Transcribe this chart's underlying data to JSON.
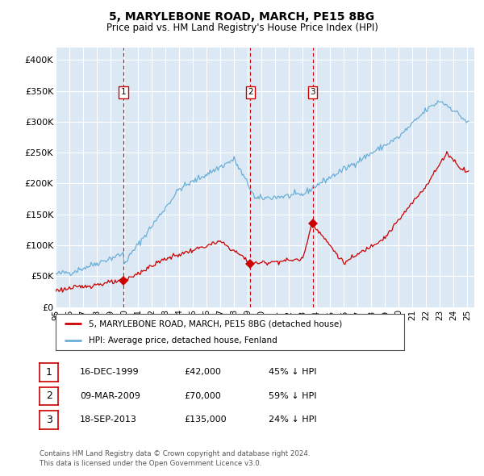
{
  "title": "5, MARYLEBONE ROAD, MARCH, PE15 8BG",
  "subtitle": "Price paid vs. HM Land Registry's House Price Index (HPI)",
  "bg_color": "#dce9f5",
  "ylabel_ticks": [
    "£0",
    "£50K",
    "£100K",
    "£150K",
    "£200K",
    "£250K",
    "£300K",
    "£350K",
    "£400K"
  ],
  "ytick_values": [
    0,
    50000,
    100000,
    150000,
    200000,
    250000,
    300000,
    350000,
    400000
  ],
  "ylim": [
    0,
    420000
  ],
  "xlim_start": 1995.0,
  "xlim_end": 2025.5,
  "xtick_years": [
    1995,
    1996,
    1997,
    1998,
    1999,
    2000,
    2001,
    2002,
    2003,
    2004,
    2005,
    2006,
    2007,
    2008,
    2009,
    2010,
    2011,
    2012,
    2013,
    2014,
    2015,
    2016,
    2017,
    2018,
    2019,
    2020,
    2021,
    2022,
    2023,
    2024,
    2025
  ],
  "xtick_labels": [
    "95",
    "96",
    "97",
    "98",
    "99",
    "00",
    "01",
    "02",
    "03",
    "04",
    "05",
    "06",
    "07",
    "08",
    "09",
    "10",
    "11",
    "12",
    "13",
    "14",
    "15",
    "16",
    "17",
    "18",
    "19",
    "20",
    "21",
    "22",
    "23",
    "24",
    "25"
  ],
  "hpi_color": "#6baed6",
  "price_color": "#cc0000",
  "vline_color": "#cc0000",
  "transaction_markers": [
    {
      "year": 1999.96,
      "price": 42000,
      "label": "1"
    },
    {
      "year": 2009.19,
      "price": 70000,
      "label": "2"
    },
    {
      "year": 2013.72,
      "price": 135000,
      "label": "3"
    }
  ],
  "table_rows": [
    {
      "num": "1",
      "date": "16-DEC-1999",
      "price": "£42,000",
      "pct": "45% ↓ HPI"
    },
    {
      "num": "2",
      "date": "09-MAR-2009",
      "price": "£70,000",
      "pct": "59% ↓ HPI"
    },
    {
      "num": "3",
      "date": "18-SEP-2013",
      "price": "£135,000",
      "pct": "24% ↓ HPI"
    }
  ],
  "legend_line1": "5, MARYLEBONE ROAD, MARCH, PE15 8BG (detached house)",
  "legend_line2": "HPI: Average price, detached house, Fenland",
  "footnote": "Contains HM Land Registry data © Crown copyright and database right 2024.\nThis data is licensed under the Open Government Licence v3.0."
}
